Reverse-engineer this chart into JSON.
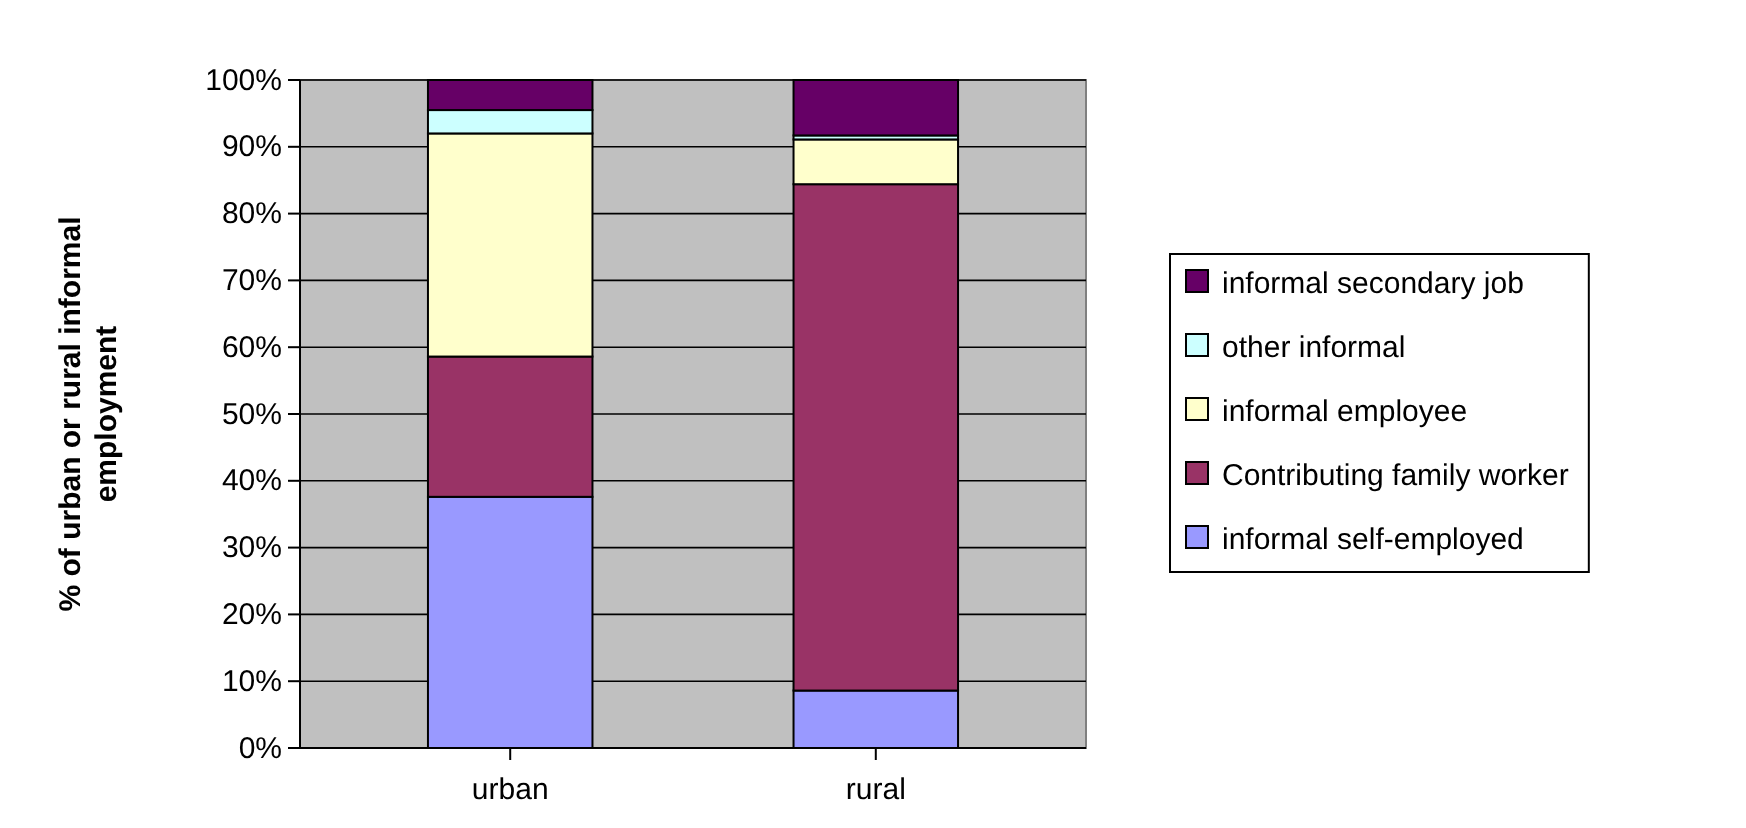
{
  "chart_data": {
    "type": "bar",
    "stacked": true,
    "categories": [
      "urban",
      "rural"
    ],
    "ylabel": "% of urban or rural informal employment",
    "ylim": [
      0,
      100
    ],
    "yticks": [
      {
        "value": 0,
        "label": "0%"
      },
      {
        "value": 10,
        "label": "10%"
      },
      {
        "value": 20,
        "label": "20%"
      },
      {
        "value": 30,
        "label": "30%"
      },
      {
        "value": 40,
        "label": "40%"
      },
      {
        "value": 50,
        "label": "50%"
      },
      {
        "value": 60,
        "label": "60%"
      },
      {
        "value": 70,
        "label": "70%"
      },
      {
        "value": 80,
        "label": "80%"
      },
      {
        "value": 90,
        "label": "90%"
      },
      {
        "value": 100,
        "label": "100%"
      }
    ],
    "grid": "y",
    "legend": "right",
    "series": [
      {
        "name": "informal self-employed",
        "color": "#9999ff",
        "values": [
          37.6,
          8.6
        ]
      },
      {
        "name": "Contributing family worker",
        "color": "#993366",
        "values": [
          21,
          75.8
        ]
      },
      {
        "name": "informal employee",
        "color": "#ffffcc",
        "values": [
          33.4,
          6.7
        ]
      },
      {
        "name": "other informal",
        "color": "#ccffff",
        "values": [
          3.5,
          0.6
        ]
      },
      {
        "name": "informal secondary job",
        "color": "#660066",
        "values": [
          4.5,
          8.3
        ]
      }
    ]
  }
}
